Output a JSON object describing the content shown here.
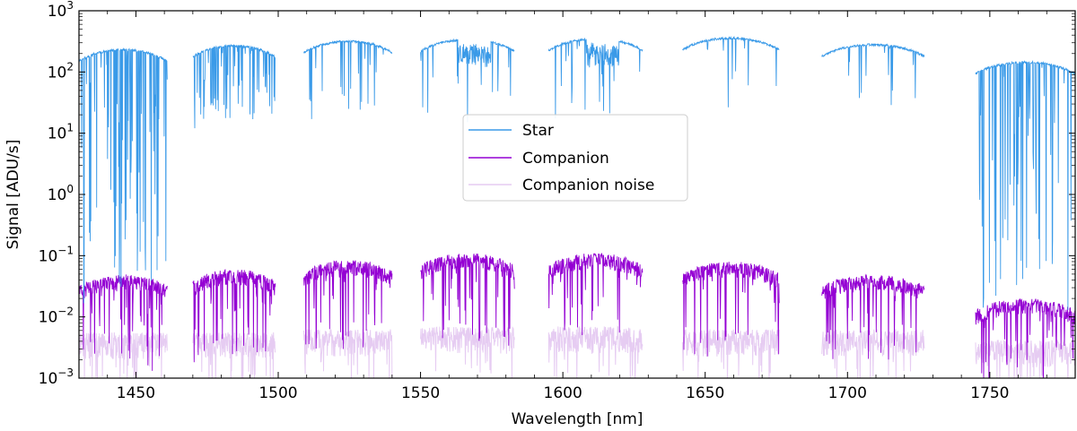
{
  "chart_data": {
    "type": "line",
    "title": "",
    "xlabel": "Wavelength [nm]",
    "ylabel": "Signal [ADU/s]",
    "xlim": [
      1430,
      1780
    ],
    "ylim": [
      0.001,
      1000
    ],
    "yscale": "log",
    "grid": false,
    "legend_position": "center",
    "x_ticks": [
      1450,
      1500,
      1550,
      1600,
      1650,
      1700,
      1750
    ],
    "y_ticks": [
      {
        "base": "10",
        "exp": "−3",
        "value": 0.001
      },
      {
        "base": "10",
        "exp": "−2",
        "value": 0.01
      },
      {
        "base": "10",
        "exp": "−1",
        "value": 0.1
      },
      {
        "base": "10",
        "exp": "0",
        "value": 1
      },
      {
        "base": "10",
        "exp": "1",
        "value": 10
      },
      {
        "base": "10",
        "exp": "2",
        "value": 100
      },
      {
        "base": "10",
        "exp": "3",
        "value": 1000
      }
    ],
    "orders": [
      {
        "x_start": 1430,
        "x_end": 1461,
        "star_peak": 240,
        "comp_level": 0.05,
        "noise_level": 0.004
      },
      {
        "x_start": 1470,
        "x_end": 1499,
        "star_peak": 280,
        "comp_level": 0.06,
        "noise_level": 0.004
      },
      {
        "x_start": 1509,
        "x_end": 1540,
        "star_peak": 330,
        "comp_level": 0.085,
        "noise_level": 0.0045
      },
      {
        "x_start": 1550,
        "x_end": 1583,
        "star_peak": 350,
        "comp_level": 0.11,
        "noise_level": 0.005
      },
      {
        "x_start": 1595,
        "x_end": 1628,
        "star_peak": 360,
        "comp_level": 0.11,
        "noise_level": 0.005
      },
      {
        "x_start": 1642,
        "x_end": 1676,
        "star_peak": 370,
        "comp_level": 0.08,
        "noise_level": 0.0045
      },
      {
        "x_start": 1691,
        "x_end": 1727,
        "star_peak": 290,
        "comp_level": 0.05,
        "noise_level": 0.0045
      },
      {
        "x_start": 1745,
        "x_end": 1780,
        "star_peak": 150,
        "comp_level": 0.02,
        "noise_level": 0.003
      }
    ],
    "series": [
      {
        "name": "Star",
        "color": "#3a9ae8"
      },
      {
        "name": "Companion",
        "color": "#9400d3"
      },
      {
        "name": "Companion noise",
        "color": "#e6ccf2"
      }
    ]
  }
}
